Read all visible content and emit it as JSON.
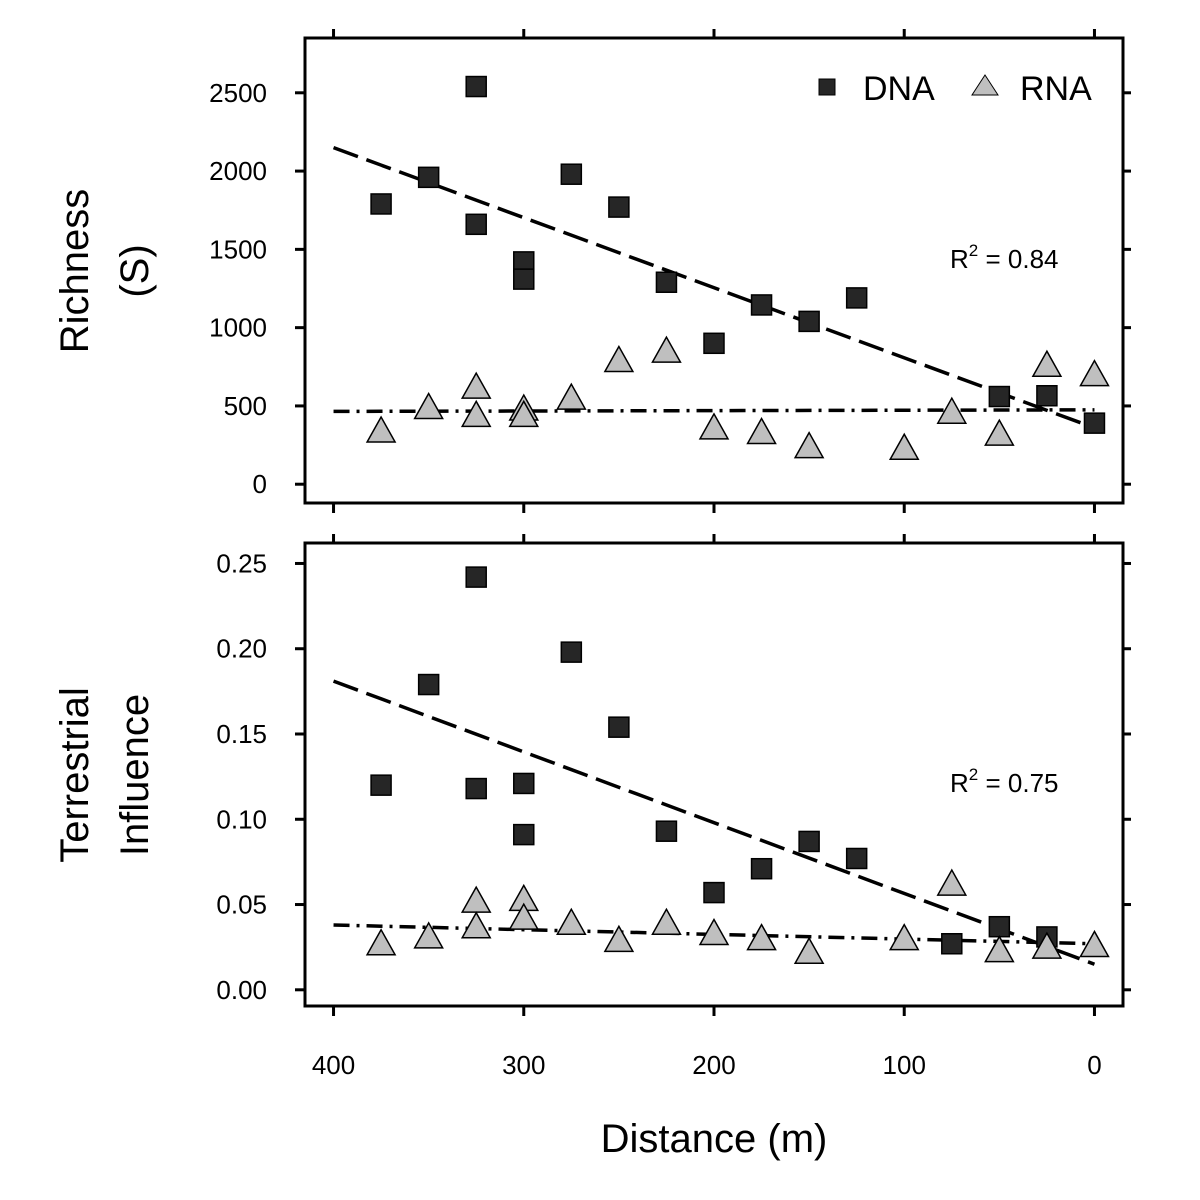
{
  "chart_data": [
    {
      "type": "scatter",
      "ylabel_lines": [
        "Richness",
        "(S)"
      ],
      "xlim": [
        415,
        -15
      ],
      "ylim": [
        -120,
        2850
      ],
      "yticks": [
        0,
        500,
        1000,
        1500,
        2000,
        2500
      ],
      "ytick_labels": [
        "0",
        "500",
        "1000",
        "1500",
        "2000",
        "2500"
      ],
      "legend": {
        "placement": "top-right",
        "entries": [
          {
            "label": "DNA",
            "marker": "square"
          },
          {
            "label": "RNA",
            "marker": "triangle"
          }
        ]
      },
      "annotation": {
        "prefix": "R",
        "superscript": "2",
        "text": " = 0.84"
      },
      "series": [
        {
          "name": "DNA",
          "marker": "square",
          "color": "#262626",
          "points": [
            [
              375,
              1790
            ],
            [
              350,
              1960
            ],
            [
              325,
              2540
            ],
            [
              325,
              1660
            ],
            [
              300,
              1420
            ],
            [
              300,
              1310
            ],
            [
              275,
              1980
            ],
            [
              250,
              1770
            ],
            [
              225,
              1290
            ],
            [
              200,
              900
            ],
            [
              175,
              1145
            ],
            [
              150,
              1040
            ],
            [
              125,
              1190
            ],
            [
              50,
              560
            ],
            [
              25,
              565
            ],
            [
              0,
              390
            ]
          ],
          "trend": {
            "style": "dashed",
            "from": [
              400,
              2150
            ],
            "to": [
              0,
              360
            ]
          }
        },
        {
          "name": "RNA",
          "marker": "triangle",
          "color": "#bfbfbf",
          "points": [
            [
              375,
              340
            ],
            [
              350,
              490
            ],
            [
              325,
              620
            ],
            [
              325,
              440
            ],
            [
              300,
              480
            ],
            [
              300,
              440
            ],
            [
              275,
              550
            ],
            [
              250,
              790
            ],
            [
              225,
              850
            ],
            [
              200,
              360
            ],
            [
              175,
              330
            ],
            [
              150,
              240
            ],
            [
              100,
              230
            ],
            [
              75,
              460
            ],
            [
              50,
              320
            ],
            [
              25,
              760
            ],
            [
              0,
              700
            ]
          ],
          "trend": {
            "style": "dash-dot",
            "from": [
              400,
              465
            ],
            "to": [
              0,
              475
            ]
          }
        }
      ]
    },
    {
      "type": "scatter",
      "ylabel_lines": [
        "Terrestrial",
        "Influence"
      ],
      "xlabel": "Distance (m)",
      "xlim": [
        415,
        -15
      ],
      "ylim": [
        -0.0095,
        0.262
      ],
      "xticks": [
        400,
        300,
        200,
        100,
        0
      ],
      "xtick_labels": [
        "400",
        "300",
        "200",
        "100",
        "0"
      ],
      "yticks": [
        0,
        0.05,
        0.1,
        0.15,
        0.2,
        0.25
      ],
      "ytick_labels": [
        "0.00",
        "0.05",
        "0.10",
        "0.15",
        "0.20",
        "0.25"
      ],
      "annotation": {
        "prefix": "R",
        "superscript": "2",
        "text": " = 0.75"
      },
      "series": [
        {
          "name": "DNA",
          "marker": "square",
          "color": "#262626",
          "points": [
            [
              375,
              0.12
            ],
            [
              350,
              0.179
            ],
            [
              325,
              0.242
            ],
            [
              325,
              0.118
            ],
            [
              300,
              0.121
            ],
            [
              300,
              0.091
            ],
            [
              275,
              0.198
            ],
            [
              250,
              0.154
            ],
            [
              225,
              0.093
            ],
            [
              200,
              0.057
            ],
            [
              175,
              0.071
            ],
            [
              150,
              0.087
            ],
            [
              125,
              0.077
            ],
            [
              75,
              0.027
            ],
            [
              50,
              0.037
            ],
            [
              25,
              0.031
            ]
          ],
          "trend": {
            "style": "dashed",
            "from": [
              400,
              0.181
            ],
            "to": [
              0,
              0.015
            ]
          }
        },
        {
          "name": "RNA",
          "marker": "triangle",
          "color": "#bfbfbf",
          "points": [
            [
              375,
              0.027
            ],
            [
              350,
              0.031
            ],
            [
              325,
              0.052
            ],
            [
              325,
              0.037
            ],
            [
              300,
              0.053
            ],
            [
              300,
              0.042
            ],
            [
              275,
              0.039
            ],
            [
              250,
              0.029
            ],
            [
              225,
              0.039
            ],
            [
              200,
              0.033
            ],
            [
              175,
              0.03
            ],
            [
              150,
              0.022
            ],
            [
              100,
              0.03
            ],
            [
              75,
              0.062
            ],
            [
              50,
              0.023
            ],
            [
              25,
              0.025
            ],
            [
              0,
              0.026
            ]
          ],
          "trend": {
            "style": "dash-dot",
            "from": [
              400,
              0.038
            ],
            "to": [
              0,
              0.027
            ]
          }
        }
      ]
    }
  ]
}
